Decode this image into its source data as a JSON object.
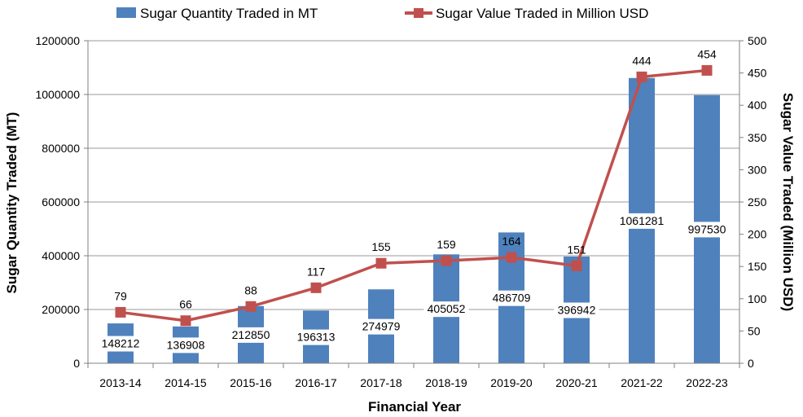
{
  "chart_data": {
    "type": "bar",
    "xlabel": "Financial Year",
    "ylabel": "Sugar Quantity Traded (MT)",
    "y2label": "Sugar Value Traded (Million USD)",
    "categories": [
      "2013-14",
      "2014-15",
      "2015-16",
      "2016-17",
      "2017-18",
      "2018-19",
      "2019-20",
      "2020-21",
      "2021-22",
      "2022-23"
    ],
    "ylim": [
      0,
      1200000
    ],
    "y2lim": [
      0,
      500
    ],
    "yticks": [
      "0",
      "200000",
      "400000",
      "600000",
      "800000",
      "1000000",
      "1200000"
    ],
    "y2ticks": [
      "0",
      "50",
      "100",
      "150",
      "200",
      "250",
      "300",
      "350",
      "400",
      "450",
      "500"
    ],
    "grid": true,
    "legend": "top",
    "series": [
      {
        "name": "Sugar Quantity Traded in MT",
        "type": "bar",
        "axis": "left",
        "color": "#4f81bd",
        "values": [
          148212,
          136908,
          212850,
          196313,
          274979,
          405052,
          486709,
          396942,
          1061281,
          997530
        ],
        "labels": [
          "148212",
          "136908",
          "212850",
          "196313",
          "274979",
          "405052",
          "486709",
          "396942",
          "1061281",
          "997530"
        ]
      },
      {
        "name": "Sugar Value Traded in Million USD",
        "type": "line",
        "axis": "right",
        "color": "#c0504d",
        "values": [
          79,
          66,
          88,
          117,
          155,
          159,
          164,
          151,
          444,
          454
        ],
        "labels": [
          "79",
          "66",
          "88",
          "117",
          "155",
          "159",
          "164",
          "151",
          "444",
          "454"
        ]
      }
    ]
  }
}
